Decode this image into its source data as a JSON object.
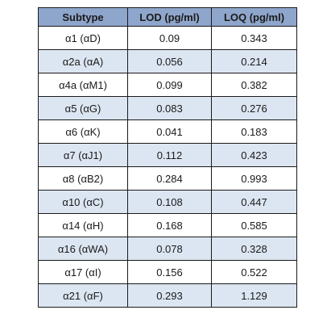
{
  "table": {
    "headers": [
      "Subtype",
      "LOD (pg/ml)",
      "LOQ (pg/ml)"
    ],
    "rows": [
      [
        "α1 (αD)",
        "0.09",
        "0.343"
      ],
      [
        "α2a (αA)",
        "0.056",
        "0.214"
      ],
      [
        "α4a (αM1)",
        "0.099",
        "0.382"
      ],
      [
        "α5 (αG)",
        "0.083",
        "0.276"
      ],
      [
        "α6 (αK)",
        "0.041",
        "0.183"
      ],
      [
        "α7 (αJ1)",
        "0.112",
        "0.423"
      ],
      [
        "α8 (αB2)",
        "0.284",
        "0.993"
      ],
      [
        "α10 (αC)",
        "0.108",
        "0.447"
      ],
      [
        "α14 (αH)",
        "0.168",
        "0.585"
      ],
      [
        "α16 (αWA)",
        "0.078",
        "0.328"
      ],
      [
        "α17 (αI)",
        "0.156",
        "0.522"
      ],
      [
        "α21 (αF)",
        "0.293",
        "1.129"
      ]
    ]
  },
  "colors": {
    "header_bg": "#8fa6cc",
    "stripe_bg": "#dce6f2",
    "border": "#1a1a1a"
  }
}
